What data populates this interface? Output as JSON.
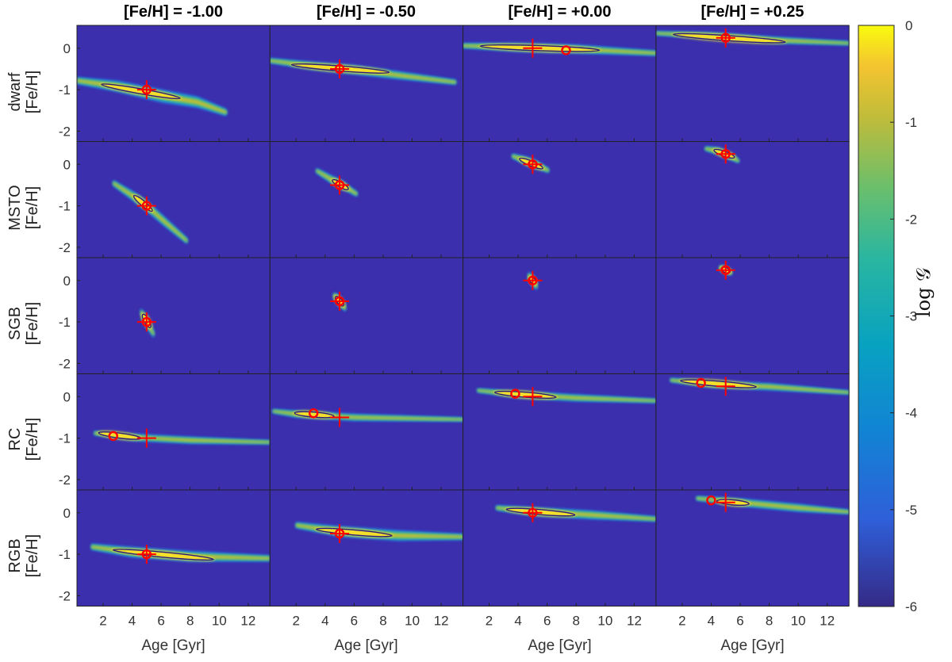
{
  "chart_data": {
    "type": "heatmap",
    "column_titles": [
      "[Fe/H] = -1.00",
      "[Fe/H] = -0.50",
      "[Fe/H] = +0.00",
      "[Fe/H] = +0.25"
    ],
    "row_labels": [
      "dwarf",
      "MSTO",
      "SGB",
      "RC",
      "RGB"
    ],
    "row_ylabel": "[Fe/H]",
    "xlabel": "Age [Gyr]",
    "xlim": [
      0.2,
      13.5
    ],
    "ylim": [
      -2.25,
      0.55
    ],
    "x_ticks": [
      2,
      4,
      6,
      8,
      10,
      12
    ],
    "y_ticks": [
      -2,
      -1,
      0
    ],
    "true_age": 5,
    "true_feh": [
      -1.0,
      -0.5,
      0.0,
      0.25
    ],
    "colorbar": {
      "label": "log 𝒢",
      "range": [
        -6,
        0
      ],
      "ticks": [
        0,
        -1,
        -2,
        -3,
        -4,
        -5,
        -6
      ]
    },
    "colors": {
      "background": "#3b2fae",
      "marker": "#ff0000",
      "contour": "#2a1c7a"
    },
    "panels": [
      [
        {
          "ridge": [
            [
              0.2,
              -0.78
            ],
            [
              3,
              -0.92
            ],
            [
              6,
              -1.15
            ],
            [
              8.5,
              -1.3
            ],
            [
              10.5,
              -1.55
            ]
          ],
          "width": 0.14,
          "peak": [
            4.8,
            -1.1
          ],
          "bright": [
            [
              2,
              -0.88
            ],
            [
              7.2,
              -1.2
            ]
          ],
          "mode": [
            5,
            -1.0
          ]
        },
        {
          "ridge": [
            [
              0.2,
              -0.3
            ],
            [
              3,
              -0.42
            ],
            [
              6,
              -0.52
            ],
            [
              9,
              -0.65
            ],
            [
              13,
              -0.82
            ]
          ],
          "width": 0.1,
          "peak": [
            5,
            -0.47
          ],
          "bright": [
            [
              1.8,
              -0.4
            ],
            [
              8.3,
              -0.58
            ]
          ],
          "mode": [
            5,
            -0.5
          ]
        },
        {
          "ridge": [
            [
              0.2,
              0.06
            ],
            [
              4,
              0.02
            ],
            [
              8,
              -0.02
            ],
            [
              13.5,
              -0.12
            ]
          ],
          "width": 0.1,
          "peak": [
            5,
            0.0
          ],
          "bright": [
            [
              1.5,
              0.05
            ],
            [
              9.5,
              -0.05
            ]
          ],
          "mode": [
            7.3,
            -0.05
          ]
        },
        {
          "ridge": [
            [
              0.2,
              0.36
            ],
            [
              4,
              0.3
            ],
            [
              8,
              0.2
            ],
            [
              13.5,
              0.12
            ]
          ],
          "width": 0.08,
          "peak": [
            5,
            0.25
          ],
          "bright": [
            [
              1.5,
              0.33
            ],
            [
              9,
              0.15
            ]
          ],
          "mode": [
            5,
            0.25
          ]
        }
      ],
      [
        {
          "ridge": [
            [
              2.7,
              -0.45
            ],
            [
              4,
              -0.75
            ],
            [
              5,
              -1.0
            ],
            [
              6.3,
              -1.4
            ],
            [
              7.8,
              -1.85
            ]
          ],
          "width": 0.12,
          "peak": [
            4.8,
            -0.92
          ],
          "bright": [
            [
              4.2,
              -0.78
            ],
            [
              5.3,
              -1.1
            ]
          ],
          "mode": [
            5,
            -1.0
          ]
        },
        {
          "ridge": [
            [
              3.4,
              -0.15
            ],
            [
              4.5,
              -0.38
            ],
            [
              5.2,
              -0.5
            ],
            [
              6.2,
              -0.72
            ]
          ],
          "width": 0.1,
          "peak": [
            5,
            -0.47
          ],
          "bright": [
            [
              4.6,
              -0.4
            ],
            [
              5.5,
              -0.58
            ]
          ],
          "mode": [
            5,
            -0.5
          ]
        },
        {
          "ridge": [
            [
              3.6,
              0.2
            ],
            [
              4.6,
              0.08
            ],
            [
              5.2,
              0.0
            ],
            [
              6.1,
              -0.15
            ]
          ],
          "width": 0.1,
          "peak": [
            5,
            0.02
          ],
          "bright": [
            [
              4.2,
              0.12
            ],
            [
              5.6,
              -0.08
            ]
          ],
          "mode": [
            5,
            0.0
          ]
        },
        {
          "ridge": [
            [
              3.6,
              0.38
            ],
            [
              4.5,
              0.32
            ],
            [
              5.1,
              0.23
            ],
            [
              5.9,
              0.08
            ]
          ],
          "width": 0.09,
          "peak": [
            5,
            0.25
          ],
          "bright": [
            [
              4.3,
              0.33
            ],
            [
              5.5,
              0.18
            ]
          ],
          "mode": [
            5,
            0.25
          ]
        }
      ],
      [
        {
          "ridge": [
            [
              4.6,
              -0.75
            ],
            [
              5,
              -1.0
            ],
            [
              5.5,
              -1.3
            ]
          ],
          "width": 0.14,
          "peak": [
            5,
            -0.98
          ],
          "bright": [
            [
              4.8,
              -0.85
            ],
            [
              5.2,
              -1.1
            ]
          ],
          "mode": [
            5,
            -1.0
          ]
        },
        {
          "ridge": [
            [
              4.6,
              -0.35
            ],
            [
              5,
              -0.5
            ],
            [
              5.4,
              -0.68
            ]
          ],
          "width": 0.12,
          "peak": [
            5,
            -0.5
          ],
          "bright": [
            [
              4.8,
              -0.42
            ],
            [
              5.2,
              -0.58
            ]
          ],
          "mode": [
            5,
            -0.5
          ]
        },
        {
          "ridge": [
            [
              4.7,
              0.12
            ],
            [
              5,
              0.0
            ],
            [
              5.3,
              -0.15
            ]
          ],
          "width": 0.14,
          "peak": [
            5,
            0.0
          ],
          "bright": [
            [
              4.9,
              0.05
            ],
            [
              5.1,
              -0.05
            ]
          ],
          "mode": [
            5,
            0.0
          ]
        },
        {
          "ridge": [
            [
              4.6,
              0.32
            ],
            [
              5,
              0.25
            ],
            [
              5.4,
              0.18
            ]
          ],
          "width": 0.09,
          "peak": [
            5,
            0.25
          ],
          "bright": [
            [
              4.8,
              0.28
            ],
            [
              5.2,
              0.22
            ]
          ],
          "mode": [
            5,
            0.25
          ]
        }
      ],
      [
        {
          "ridge": [
            [
              1.4,
              -0.88
            ],
            [
              4,
              -0.98
            ],
            [
              8,
              -1.05
            ],
            [
              13.5,
              -1.1
            ]
          ],
          "width": 0.08,
          "peak": [
            2.7,
            -0.93
          ],
          "bright": [
            [
              1.8,
              -0.88
            ],
            [
              4.5,
              -1.0
            ]
          ],
          "mode": [
            2.7,
            -0.95
          ]
        },
        {
          "ridge": [
            [
              0.4,
              -0.35
            ],
            [
              2,
              -0.42
            ],
            [
              6,
              -0.5
            ],
            [
              13.5,
              -0.55
            ]
          ],
          "width": 0.08,
          "peak": [
            3.2,
            -0.42
          ],
          "bright": [
            [
              2,
              -0.4
            ],
            [
              4.5,
              -0.47
            ]
          ],
          "mode": [
            3.2,
            -0.4
          ]
        },
        {
          "ridge": [
            [
              1.2,
              0.15
            ],
            [
              4,
              0.05
            ],
            [
              8,
              -0.03
            ],
            [
              13.5,
              -0.1
            ]
          ],
          "width": 0.08,
          "peak": [
            3.8,
            0.07
          ],
          "bright": [
            [
              2.5,
              0.1
            ],
            [
              6.5,
              -0.01
            ]
          ],
          "mode": [
            3.8,
            0.07
          ]
        },
        {
          "ridge": [
            [
              1.2,
              0.4
            ],
            [
              4,
              0.3
            ],
            [
              8,
              0.24
            ],
            [
              13.5,
              0.1
            ]
          ],
          "width": 0.08,
          "peak": [
            3.3,
            0.33
          ],
          "bright": [
            [
              2,
              0.38
            ],
            [
              7,
              0.24
            ]
          ],
          "mode": [
            3.3,
            0.33
          ]
        }
      ],
      [
        {
          "ridge": [
            [
              1.2,
              -0.82
            ],
            [
              4,
              -0.95
            ],
            [
              8,
              -1.05
            ],
            [
              13.5,
              -1.1
            ]
          ],
          "width": 0.12,
          "peak": [
            5,
            -1.0
          ],
          "bright": [
            [
              2.8,
              -0.9
            ],
            [
              9.5,
              -1.12
            ]
          ],
          "mode": [
            5,
            -1.0
          ]
        },
        {
          "ridge": [
            [
              2,
              -0.3
            ],
            [
              5,
              -0.45
            ],
            [
              9,
              -0.55
            ],
            [
              13.5,
              -0.58
            ]
          ],
          "width": 0.12,
          "peak": [
            5,
            -0.48
          ],
          "bright": [
            [
              3.5,
              -0.4
            ],
            [
              8.5,
              -0.55
            ]
          ],
          "mode": [
            5,
            -0.5
          ]
        },
        {
          "ridge": [
            [
              2.5,
              0.12
            ],
            [
              5,
              0.03
            ],
            [
              9,
              -0.05
            ],
            [
              13.5,
              -0.15
            ]
          ],
          "width": 0.1,
          "peak": [
            5,
            0.0
          ],
          "bright": [
            [
              3.3,
              0.08
            ],
            [
              7.8,
              -0.05
            ]
          ],
          "mode": [
            5,
            0.0
          ]
        },
        {
          "ridge": [
            [
              3,
              0.35
            ],
            [
              6,
              0.25
            ],
            [
              10,
              0.12
            ],
            [
              13.5,
              0.02
            ]
          ],
          "width": 0.09,
          "peak": [
            4,
            0.3
          ],
          "bright": [
            [
              4.5,
              0.28
            ],
            [
              6.5,
              0.22
            ]
          ],
          "mode": [
            4,
            0.3
          ]
        }
      ]
    ]
  }
}
